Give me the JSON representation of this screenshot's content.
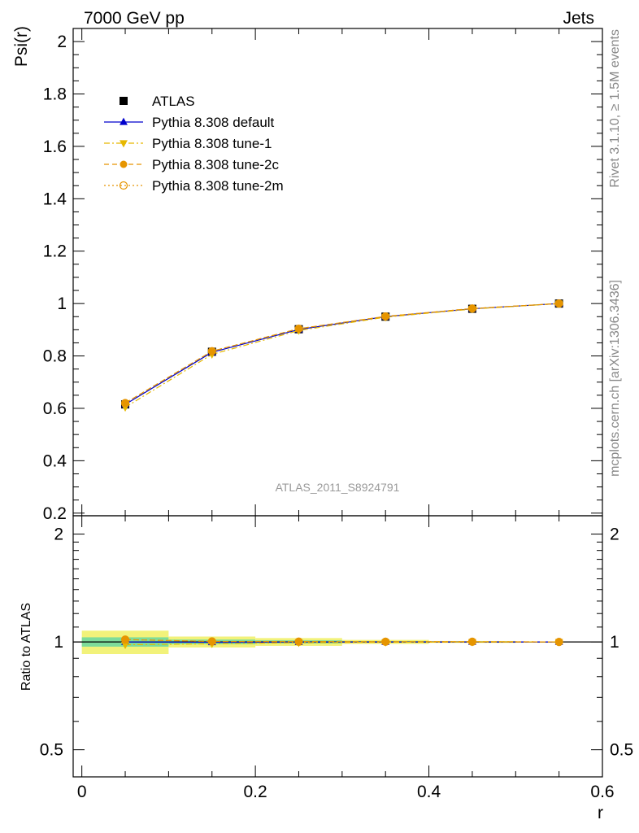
{
  "header": {
    "energy_label": "7000 GeV pp",
    "process_label": "Jets",
    "rivet_label": "Rivet 3.1.10, ≥ 1.5M events",
    "source_label": "mcplots.cern.ch [arXiv:1306.3436]",
    "analysis_label": "ATLAS_2011_S8924791"
  },
  "chart_data": [
    {
      "type": "line",
      "panel": "main",
      "ylabel": "Psi(r)",
      "xlabel": "",
      "xlim": [
        -0.01,
        0.6
      ],
      "ylim": [
        0.19,
        2.05
      ],
      "yticks": [
        "0.2",
        "0.4",
        "0.6",
        "0.8",
        "1",
        "1.2",
        "1.4",
        "1.6",
        "1.8",
        "2"
      ],
      "x": [
        0.05,
        0.15,
        0.25,
        0.35,
        0.45,
        0.55
      ],
      "series": [
        {
          "name": "ATLAS",
          "values": [
            0.615,
            0.816,
            0.902,
            0.95,
            0.98,
            1.0
          ],
          "color": "#000000",
          "marker": "square",
          "line": "none"
        },
        {
          "name": "Pythia 8.308 default",
          "values": [
            0.615,
            0.814,
            0.901,
            0.95,
            0.98,
            1.0
          ],
          "color": "#0000cc",
          "marker": "triangle-up",
          "line": "solid"
        },
        {
          "name": "Pythia 8.308 tune-1",
          "values": [
            0.604,
            0.806,
            0.897,
            0.948,
            0.979,
            1.0
          ],
          "color": "#e6b800",
          "marker": "triangle-down",
          "line": "dashdot"
        },
        {
          "name": "Pythia 8.308 tune-2c",
          "values": [
            0.62,
            0.818,
            0.904,
            0.951,
            0.981,
            1.0
          ],
          "color": "#e69500",
          "marker": "circle",
          "line": "dashed"
        },
        {
          "name": "Pythia 8.308 tune-2m",
          "values": [
            0.62,
            0.818,
            0.904,
            0.951,
            0.981,
            1.0
          ],
          "color": "#e69500",
          "marker": "open-circle",
          "line": "dotted"
        }
      ],
      "legend_position": "top-left"
    },
    {
      "type": "line",
      "panel": "ratio",
      "ylabel": "Ratio to ATLAS",
      "xlabel": "r",
      "xlim": [
        -0.01,
        0.6
      ],
      "ylim": [
        0.42,
        2.25
      ],
      "yticks": [
        "0.5",
        "1",
        "2"
      ],
      "xticks": [
        "0",
        "0.2",
        "0.4",
        "0.6"
      ],
      "x": [
        0.05,
        0.15,
        0.25,
        0.35,
        0.45,
        0.55
      ],
      "bands": [
        {
          "x0": 0.0,
          "x1": 0.1,
          "inner": 0.03,
          "outer": 0.075
        },
        {
          "x0": 0.1,
          "x1": 0.2,
          "inner": 0.015,
          "outer": 0.035
        },
        {
          "x0": 0.2,
          "x1": 0.3,
          "inner": 0.01,
          "outer": 0.025
        },
        {
          "x0": 0.3,
          "x1": 0.4,
          "inner": 0.005,
          "outer": 0.013
        },
        {
          "x0": 0.4,
          "x1": 0.5,
          "inner": 0.003,
          "outer": 0.006
        },
        {
          "x0": 0.5,
          "x1": 0.6,
          "inner": 0.001,
          "outer": 0.002
        }
      ],
      "band_colors": {
        "inner": "#7ddc9a",
        "outer": "#f2f27a"
      },
      "series": [
        {
          "name": "Pythia 8.308 default",
          "values": [
            1.0,
            0.998,
            0.999,
            1.0,
            1.0,
            1.0
          ],
          "color": "#0000cc",
          "marker": "triangle-up",
          "line": "solid"
        },
        {
          "name": "Pythia 8.308 tune-1",
          "values": [
            0.982,
            0.988,
            0.995,
            0.998,
            0.999,
            1.0
          ],
          "color": "#e6b800",
          "marker": "triangle-down",
          "line": "dashdot"
        },
        {
          "name": "Pythia 8.308 tune-2c",
          "values": [
            1.015,
            1.003,
            1.002,
            1.001,
            1.001,
            1.0
          ],
          "color": "#e69500",
          "marker": "circle",
          "line": "dashed"
        },
        {
          "name": "Pythia 8.308 tune-2m",
          "values": [
            1.015,
            1.003,
            1.002,
            1.001,
            1.001,
            1.0
          ],
          "color": "#e69500",
          "marker": "open-circle",
          "line": "dotted"
        }
      ]
    }
  ]
}
